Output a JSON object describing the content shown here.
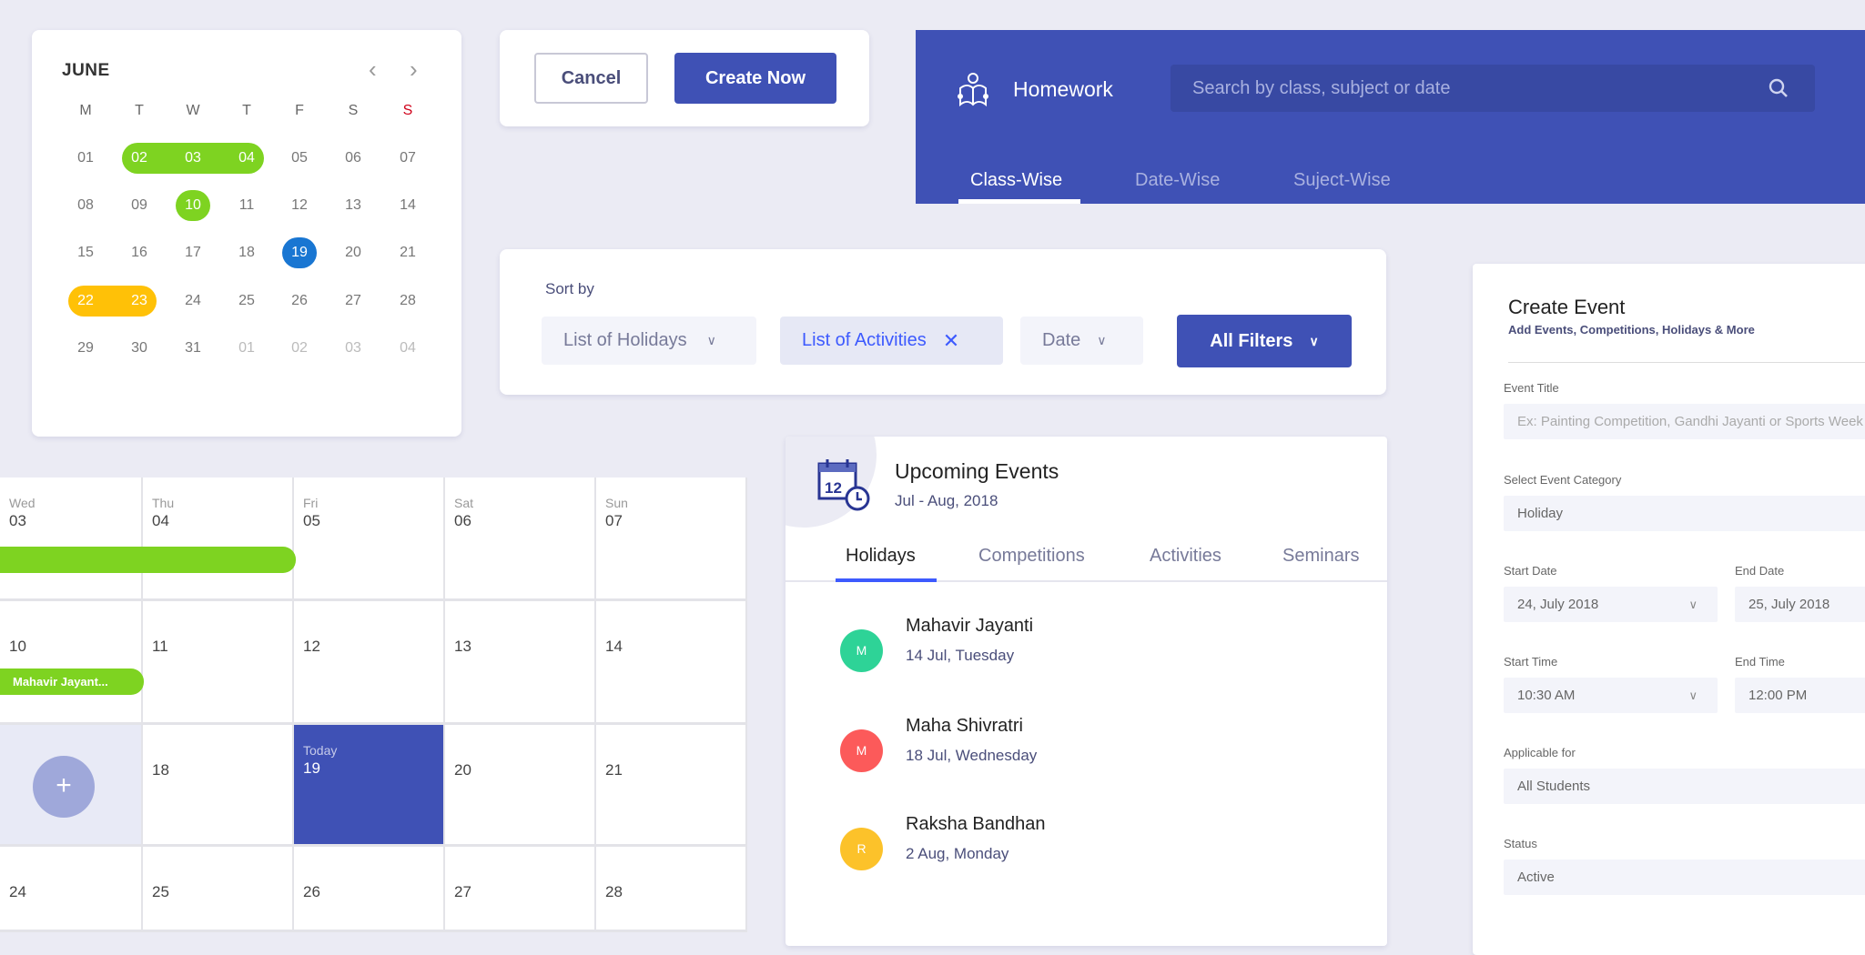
{
  "colors": {
    "primary": "#3f51b5",
    "green": "#7ed321",
    "yellow": "#ffc107",
    "today_blue": "#1976d2",
    "sunday_red": "#d0021b"
  },
  "mini_calendar": {
    "month": "JUNE",
    "prev_icon": "chevron-left-icon",
    "next_icon": "chevron-right-icon",
    "weekdays": [
      "M",
      "T",
      "W",
      "T",
      "F",
      "S",
      "S"
    ],
    "weeks": [
      [
        "01",
        "02",
        "03",
        "04",
        "05",
        "06",
        "07"
      ],
      [
        "08",
        "09",
        "10",
        "11",
        "12",
        "13",
        "14"
      ],
      [
        "15",
        "16",
        "17",
        "18",
        "19",
        "20",
        "21"
      ],
      [
        "22",
        "23",
        "24",
        "25",
        "26",
        "27",
        "28"
      ],
      [
        "29",
        "30",
        "31",
        "01",
        "02",
        "03",
        "04"
      ]
    ],
    "next_month_days_in_last_week": [
      "01",
      "02",
      "03",
      "04"
    ],
    "highlights": [
      {
        "week": 0,
        "days": [
          "02",
          "03",
          "04"
        ],
        "color": "#7ed321"
      },
      {
        "week": 1,
        "days": [
          "10"
        ],
        "color": "#7ed321"
      },
      {
        "week": 2,
        "days": [
          "19"
        ],
        "color": "#1976d2"
      },
      {
        "week": 3,
        "days": [
          "22",
          "23"
        ],
        "color": "#ffc107"
      }
    ]
  },
  "actions": {
    "cancel": "Cancel",
    "create": "Create Now"
  },
  "homework": {
    "title": "Homework",
    "icon": "student-reading-icon",
    "search_placeholder": "Search by class, subject or date",
    "tabs": [
      "Class-Wise",
      "Date-Wise",
      "Suject-Wise"
    ],
    "active_tab": "Class-Wise"
  },
  "sort": {
    "label": "Sort by",
    "chips": [
      {
        "label": "List of Holidays",
        "icon": "chevron-down"
      },
      {
        "label": "List of Activities",
        "icon": "close",
        "selected": true
      },
      {
        "label": "Date",
        "icon": "chevron-down"
      }
    ],
    "all_filters": "All Filters"
  },
  "create_event": {
    "title": "Create Event",
    "subtitle": "Add Events, Competitions, Holidays & More",
    "fields": {
      "event_title": {
        "label": "Event Title",
        "placeholder": "Ex: Painting Competition, Gandhi Jayanti or Sports Week"
      },
      "category": {
        "label": "Select Event Category",
        "value": "Holiday"
      },
      "start_date": {
        "label": "Start Date",
        "value": "24, July 2018"
      },
      "end_date": {
        "label": "End Date",
        "value": "25, July 2018"
      },
      "start_time": {
        "label": "Start Time",
        "value": "10:30 AM"
      },
      "end_time": {
        "label": "End Time",
        "value": "12:00 PM"
      },
      "applicable": {
        "label": "Applicable for",
        "value": "All Students"
      },
      "status": {
        "label": "Status",
        "value": "Active"
      }
    }
  },
  "upcoming": {
    "title": "Upcoming Events",
    "range": "Jul - Aug, 2018",
    "icon": "calendar-clock-icon",
    "calendar_icon_number": "12",
    "tabs": [
      "Holidays",
      "Competitions",
      "Activities",
      "Seminars"
    ],
    "active_tab": "Holidays",
    "events": [
      {
        "initial": "M",
        "name": "Mahavir Jayanti",
        "date": "14 Jul, Tuesday",
        "color": "#2ed397"
      },
      {
        "initial": "M",
        "name": "Maha Shivratri",
        "date": "18 Jul, Wednesday",
        "color": "#fc5a5a"
      },
      {
        "initial": "R",
        "name": "Raksha Bandhan",
        "date": "2 Aug, Monday",
        "color": "#fcc22a"
      }
    ]
  },
  "big_calendar": {
    "today_label": "Today",
    "rows": [
      [
        {
          "dow": "Wed",
          "date": "03"
        },
        {
          "dow": "Thu",
          "date": "04"
        },
        {
          "dow": "Fri",
          "date": "05"
        },
        {
          "dow": "Sat",
          "date": "06"
        },
        {
          "dow": "Sun",
          "date": "07"
        }
      ],
      [
        {
          "date": "10"
        },
        {
          "date": "11"
        },
        {
          "date": "12"
        },
        {
          "date": "13"
        },
        {
          "date": "14"
        }
      ],
      [
        {
          "date": "",
          "add_button": true
        },
        {
          "date": "18"
        },
        {
          "date": "19",
          "today": true
        },
        {
          "date": "20"
        },
        {
          "date": "21"
        }
      ],
      [
        {
          "date": "24"
        },
        {
          "date": "25"
        },
        {
          "date": "26"
        },
        {
          "date": "27"
        },
        {
          "date": "28"
        }
      ]
    ],
    "events": [
      {
        "label": "",
        "row": 0
      },
      {
        "label": "Mahavir Jayant...",
        "row": 1
      }
    ],
    "add_icon": "plus-icon"
  }
}
